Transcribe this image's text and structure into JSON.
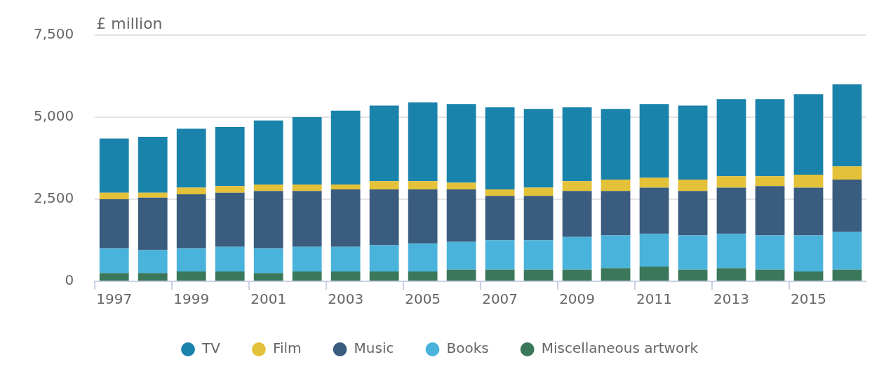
{
  "chart_data": {
    "type": "bar",
    "stacked": true,
    "ylabel": "£ million",
    "categories": [
      "1997",
      null,
      "1999",
      null,
      "2001",
      null,
      "2003",
      null,
      "2005",
      null,
      "2007",
      null,
      "2009",
      null,
      "2011",
      null,
      "2013",
      null,
      "2015",
      null
    ],
    "series": [
      {
        "name": "Miscellaneous artwork",
        "color": "#3b775a",
        "values": [
          250,
          250,
          300,
          300,
          250,
          300,
          300,
          300,
          300,
          350,
          350,
          350,
          350,
          400,
          450,
          350,
          400,
          350,
          300,
          350
        ]
      },
      {
        "name": "Books",
        "color": "#4ab3dc",
        "values": [
          750,
          700,
          700,
          750,
          750,
          750,
          750,
          800,
          850,
          850,
          900,
          900,
          1000,
          1000,
          1000,
          1050,
          1050,
          1050,
          1100,
          1150
        ]
      },
      {
        "name": "Music",
        "color": "#3a5c7e",
        "values": [
          1500,
          1600,
          1650,
          1650,
          1750,
          1700,
          1750,
          1700,
          1650,
          1600,
          1350,
          1350,
          1400,
          1350,
          1400,
          1350,
          1400,
          1500,
          1450,
          1600
        ]
      },
      {
        "name": "Film",
        "color": "#e3c138",
        "values": [
          200,
          150,
          200,
          200,
          200,
          200,
          150,
          250,
          250,
          200,
          200,
          250,
          300,
          350,
          300,
          350,
          350,
          300,
          400,
          400
        ]
      },
      {
        "name": "TV",
        "color": "#1a83ab",
        "values": [
          1650,
          1700,
          1800,
          1800,
          1950,
          2050,
          2250,
          2300,
          2400,
          2400,
          2500,
          2400,
          2250,
          2150,
          2250,
          2250,
          2350,
          2350,
          2450,
          2500
        ]
      }
    ],
    "ylim": [
      0,
      7500
    ],
    "yticks": [
      0,
      {
        "value": 2500,
        "label": "2,500"
      },
      {
        "value": 5000,
        "label": "5,000"
      },
      {
        "value": 7500,
        "label": "7,500"
      }
    ],
    "grid": "y",
    "legend": "bottom"
  }
}
